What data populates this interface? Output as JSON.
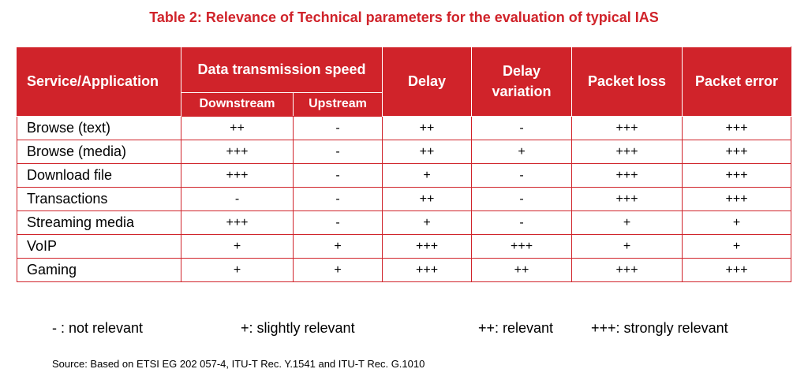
{
  "title": "Table 2: Relevance of Technical parameters for the evaluation of typical IAS",
  "table": {
    "headers": {
      "service": "Service/Application",
      "data_speed": "Data transmission speed",
      "downstream": "Downstream",
      "upstream": "Upstream",
      "delay": "Delay",
      "delay_variation": "Delay variation",
      "packet_loss": "Packet loss",
      "packet_error": "Packet error"
    },
    "rows": [
      {
        "service": "Browse (text)",
        "downstream": "++",
        "upstream": "-",
        "delay": "++",
        "delay_variation": "-",
        "packet_loss": "+++",
        "packet_error": "+++"
      },
      {
        "service": "Browse (media)",
        "downstream": "+++",
        "upstream": "-",
        "delay": "++",
        "delay_variation": "+",
        "packet_loss": "+++",
        "packet_error": "+++"
      },
      {
        "service": "Download file",
        "downstream": "+++",
        "upstream": "-",
        "delay": "+",
        "delay_variation": "-",
        "packet_loss": "+++",
        "packet_error": "+++"
      },
      {
        "service": "Transactions",
        "downstream": "-",
        "upstream": "-",
        "delay": "++",
        "delay_variation": "-",
        "packet_loss": "+++",
        "packet_error": "+++"
      },
      {
        "service": "Streaming media",
        "downstream": "+++",
        "upstream": "-",
        "delay": "+",
        "delay_variation": "-",
        "packet_loss": "+",
        "packet_error": "+"
      },
      {
        "service": "VoIP",
        "downstream": "+",
        "upstream": "+",
        "delay": "+++",
        "delay_variation": "+++",
        "packet_loss": "+",
        "packet_error": "+"
      },
      {
        "service": "Gaming",
        "downstream": "+",
        "upstream": "+",
        "delay": "+++",
        "delay_variation": "++",
        "packet_loss": "+++",
        "packet_error": "+++"
      }
    ]
  },
  "legend": [
    "- : not relevant",
    "+: slightly relevant",
    "++: relevant",
    "+++: strongly relevant"
  ],
  "source": "Source: Based on ETSI EG 202 057-4, ITU-T Rec. Y.1541 and ITU-T Rec. G.1010",
  "colors": {
    "accent": "#d0232a"
  }
}
